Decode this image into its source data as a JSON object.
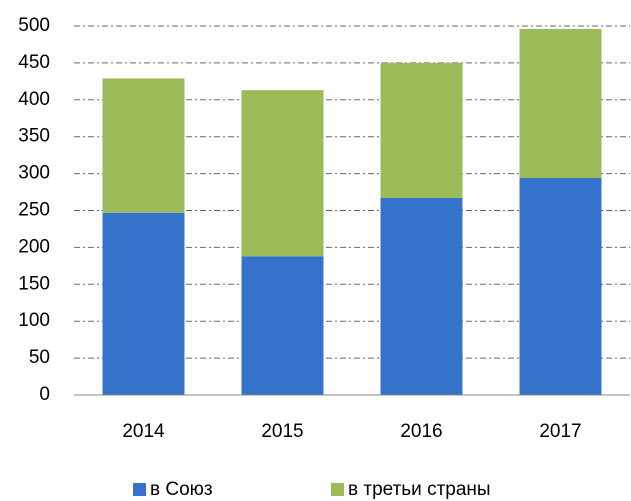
{
  "chart_data": {
    "type": "stacked_bar",
    "categories": [
      "2014",
      "2015",
      "2016",
      "2017"
    ],
    "series": [
      {
        "name": "в Союз",
        "color": "#3473c9",
        "values": [
          247,
          188,
          267,
          294
        ]
      },
      {
        "name": "в третьи страны",
        "color": "#9bbb59",
        "values": [
          182,
          225,
          183,
          202
        ]
      }
    ],
    "ylim": [
      0,
      500
    ],
    "yticks": [
      0,
      50,
      100,
      150,
      200,
      250,
      300,
      350,
      400,
      450,
      500
    ],
    "grid": true,
    "legend": "bottom"
  }
}
